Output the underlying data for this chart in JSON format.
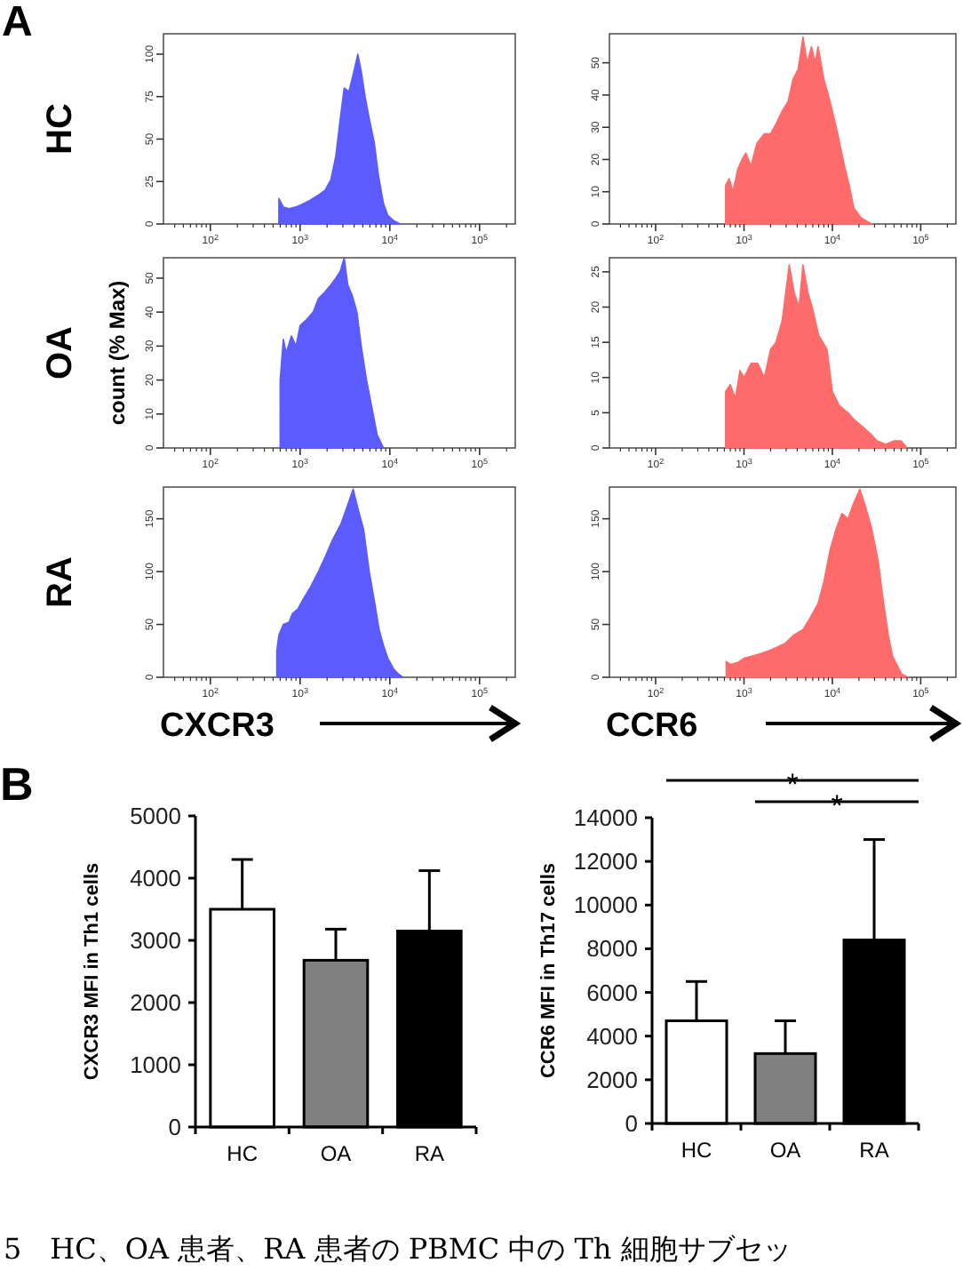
{
  "chart_data": [
    {
      "type": "area",
      "title": "HC",
      "annotations": [
        "A"
      ],
      "log": "x",
      "color": "#5b5bff",
      "x": [
        580,
        650,
        750,
        900,
        1100,
        1300,
        1600,
        1900,
        2200,
        2500,
        2800,
        3100,
        3500,
        3900,
        4400,
        4800,
        5300,
        5900,
        6700,
        7500,
        8500,
        9500,
        11000,
        13000
      ],
      "values": [
        15,
        10,
        9,
        10,
        12,
        14,
        17,
        20,
        26,
        40,
        62,
        80,
        78,
        88,
        100,
        90,
        75,
        62,
        48,
        28,
        12,
        5,
        2,
        0
      ],
      "xlim": [
        30,
        250000
      ],
      "ylim": [
        0,
        112
      ],
      "xticks": [
        {
          "value": 100,
          "label": "10$^{2}$"
        },
        {
          "value": 1000,
          "label": "10$^{3}$"
        },
        {
          "value": 10000,
          "label": "10$^{4}$"
        },
        {
          "value": 100000,
          "label": "10$^{5}$"
        }
      ],
      "yticks": [
        0,
        25,
        50,
        75,
        100
      ]
    },
    {
      "type": "area",
      "log": "x",
      "color": "#ff6b6b",
      "x": [
        620,
        680,
        750,
        850,
        950,
        1050,
        1200,
        1400,
        1700,
        2000,
        2300,
        2700,
        3150,
        3600,
        4100,
        4650,
        5200,
        5800,
        6400,
        6900,
        8000,
        9000,
        10000,
        11500,
        13700,
        15500,
        17500,
        21000,
        24000,
        28000
      ],
      "values": [
        12,
        14,
        10,
        17,
        20,
        22,
        18,
        25,
        28,
        28,
        31,
        35,
        38,
        45,
        48,
        58,
        50,
        55,
        50,
        55,
        45,
        40,
        35,
        28,
        18,
        12,
        5,
        2,
        1,
        0
      ],
      "xlim": [
        30,
        250000
      ],
      "ylim": [
        0,
        59
      ],
      "xticks": [
        {
          "value": 100,
          "label": "10$^{2}$"
        },
        {
          "value": 1000,
          "label": "10$^{3}$"
        },
        {
          "value": 10000,
          "label": "10$^{4}$"
        },
        {
          "value": 100000,
          "label": "10$^{5}$"
        }
      ],
      "yticks": [
        0,
        10,
        20,
        30,
        40,
        50
      ]
    },
    {
      "type": "area",
      "title": "OA",
      "ylabel": "count (% Max)",
      "log": "x",
      "color": "#5b5bff",
      "x": [
        600,
        650,
        700,
        800,
        900,
        1000,
        1200,
        1400,
        1600,
        1900,
        2200,
        2500,
        2800,
        3100,
        3400,
        3800,
        4300,
        4800,
        5500,
        6300,
        7200,
        8500
      ],
      "values": [
        20,
        32,
        28,
        33,
        30,
        36,
        38,
        40,
        44,
        46,
        48,
        50,
        52,
        56,
        48,
        45,
        40,
        30,
        20,
        12,
        4,
        0
      ],
      "xlim": [
        30,
        250000
      ],
      "ylim": [
        0,
        56
      ],
      "xticks": [
        {
          "value": 100,
          "label": "10$^{2}$"
        },
        {
          "value": 1000,
          "label": "10$^{3}$"
        },
        {
          "value": 10000,
          "label": "10$^{4}$"
        },
        {
          "value": 100000,
          "label": "10$^{5}$"
        }
      ],
      "yticks": [
        0,
        10,
        20,
        30,
        40,
        50
      ]
    },
    {
      "type": "area",
      "log": "x",
      "color": "#ff6b6b",
      "x": [
        620,
        700,
        800,
        900,
        1000,
        1200,
        1430,
        1700,
        2000,
        2300,
        2700,
        3250,
        3700,
        4200,
        4650,
        5300,
        5900,
        7000,
        8700,
        10000,
        12000,
        15000,
        17700,
        22000,
        27000,
        32000,
        40000,
        50000,
        60000,
        70000
      ],
      "values": [
        8,
        9,
        7,
        11,
        10,
        12,
        12,
        10,
        14,
        15,
        18,
        26,
        22,
        20,
        26,
        22,
        20,
        16,
        14,
        8,
        6,
        5,
        4,
        3,
        2,
        1,
        0.5,
        1,
        1,
        0
      ],
      "xlim": [
        30,
        250000
      ],
      "ylim": [
        0,
        27
      ],
      "xticks": [
        {
          "value": 100,
          "label": "10$^{2}$"
        },
        {
          "value": 1000,
          "label": "10$^{3}$"
        },
        {
          "value": 10000,
          "label": "10$^{4}$"
        },
        {
          "value": 100000,
          "label": "10$^{5}$"
        }
      ],
      "yticks": [
        0,
        5,
        10,
        15,
        20,
        25
      ]
    },
    {
      "type": "area",
      "title": "RA",
      "xlabel": "CXCR3",
      "log": "x",
      "color": "#5b5bff",
      "x": [
        550,
        580,
        650,
        750,
        820,
        950,
        1100,
        1300,
        1600,
        1930,
        2300,
        2850,
        3300,
        3900,
        4400,
        5100,
        5900,
        6800,
        7600,
        8500,
        9500,
        11000,
        12500,
        14000
      ],
      "values": [
        25,
        40,
        50,
        52,
        60,
        65,
        75,
        85,
        100,
        115,
        130,
        145,
        160,
        178,
        160,
        140,
        100,
        70,
        45,
        30,
        18,
        8,
        3,
        0
      ],
      "xlim": [
        30,
        250000
      ],
      "ylim": [
        0,
        180
      ],
      "xticks": [
        {
          "value": 100,
          "label": "10$^{2}$"
        },
        {
          "value": 1000,
          "label": "10$^{3}$"
        },
        {
          "value": 10000,
          "label": "10$^{4}$"
        },
        {
          "value": 100000,
          "label": "10$^{5}$"
        }
      ],
      "yticks": [
        0,
        50,
        100,
        150
      ]
    },
    {
      "type": "area",
      "xlabel": "CCR6",
      "log": "x",
      "color": "#ff6b6b",
      "x": [
        630,
        700,
        850,
        1000,
        1230,
        1500,
        1900,
        2300,
        2900,
        3670,
        4650,
        5500,
        6900,
        8000,
        9400,
        11000,
        12800,
        15000,
        17500,
        20500,
        24000,
        28000,
        33000,
        38000,
        43000,
        48000,
        55000,
        61000,
        72000
      ],
      "values": [
        15,
        12,
        14,
        18,
        20,
        22,
        25,
        28,
        32,
        40,
        45,
        55,
        70,
        90,
        120,
        140,
        155,
        150,
        165,
        178,
        160,
        140,
        110,
        70,
        40,
        20,
        10,
        3,
        0
      ],
      "xlim": [
        30,
        250000
      ],
      "ylim": [
        0,
        180
      ],
      "xticks": [
        {
          "value": 100,
          "label": "10$^{2}$"
        },
        {
          "value": 1000,
          "label": "10$^{3}$"
        },
        {
          "value": 10000,
          "label": "10$^{4}$"
        },
        {
          "value": 100000,
          "label": "10$^{5}$"
        }
      ],
      "yticks": [
        0,
        50,
        100,
        150
      ]
    },
    {
      "type": "bar",
      "ylabel": "CXCR3 MFI in Th1 cells",
      "annotations": [
        "B"
      ],
      "categories": [
        "HC",
        "OA",
        "RA"
      ],
      "values": [
        3500,
        2680,
        3150
      ],
      "colors": [
        "#ffffff",
        "#808080",
        "#000000"
      ],
      "errors": [
        [
          3500,
          4300
        ],
        [
          2680,
          3180
        ],
        [
          3150,
          4120
        ]
      ],
      "ylim": [
        0,
        5000
      ],
      "yticks": [
        0,
        1000,
        2000,
        3000,
        4000,
        5000
      ]
    },
    {
      "type": "bar",
      "ylabel": "CCR6 MFI in Th17 cells",
      "annotations": [
        "*",
        "*",
        "5　HC、OA 患者、RA 患者の PBMC 中の Th 細胞サブセッ"
      ],
      "categories": [
        "HC",
        "OA",
        "RA"
      ],
      "values": [
        4700,
        3200,
        8400
      ],
      "colors": [
        "#ffffff",
        "#808080",
        "#000000"
      ],
      "errors": [
        [
          4700,
          6500
        ],
        [
          3200,
          4700
        ],
        [
          8400,
          13000
        ]
      ],
      "ylim": [
        0,
        14000
      ],
      "yticks": [
        0,
        2000,
        4000,
        6000,
        8000,
        10000,
        12000,
        14000
      ]
    }
  ]
}
